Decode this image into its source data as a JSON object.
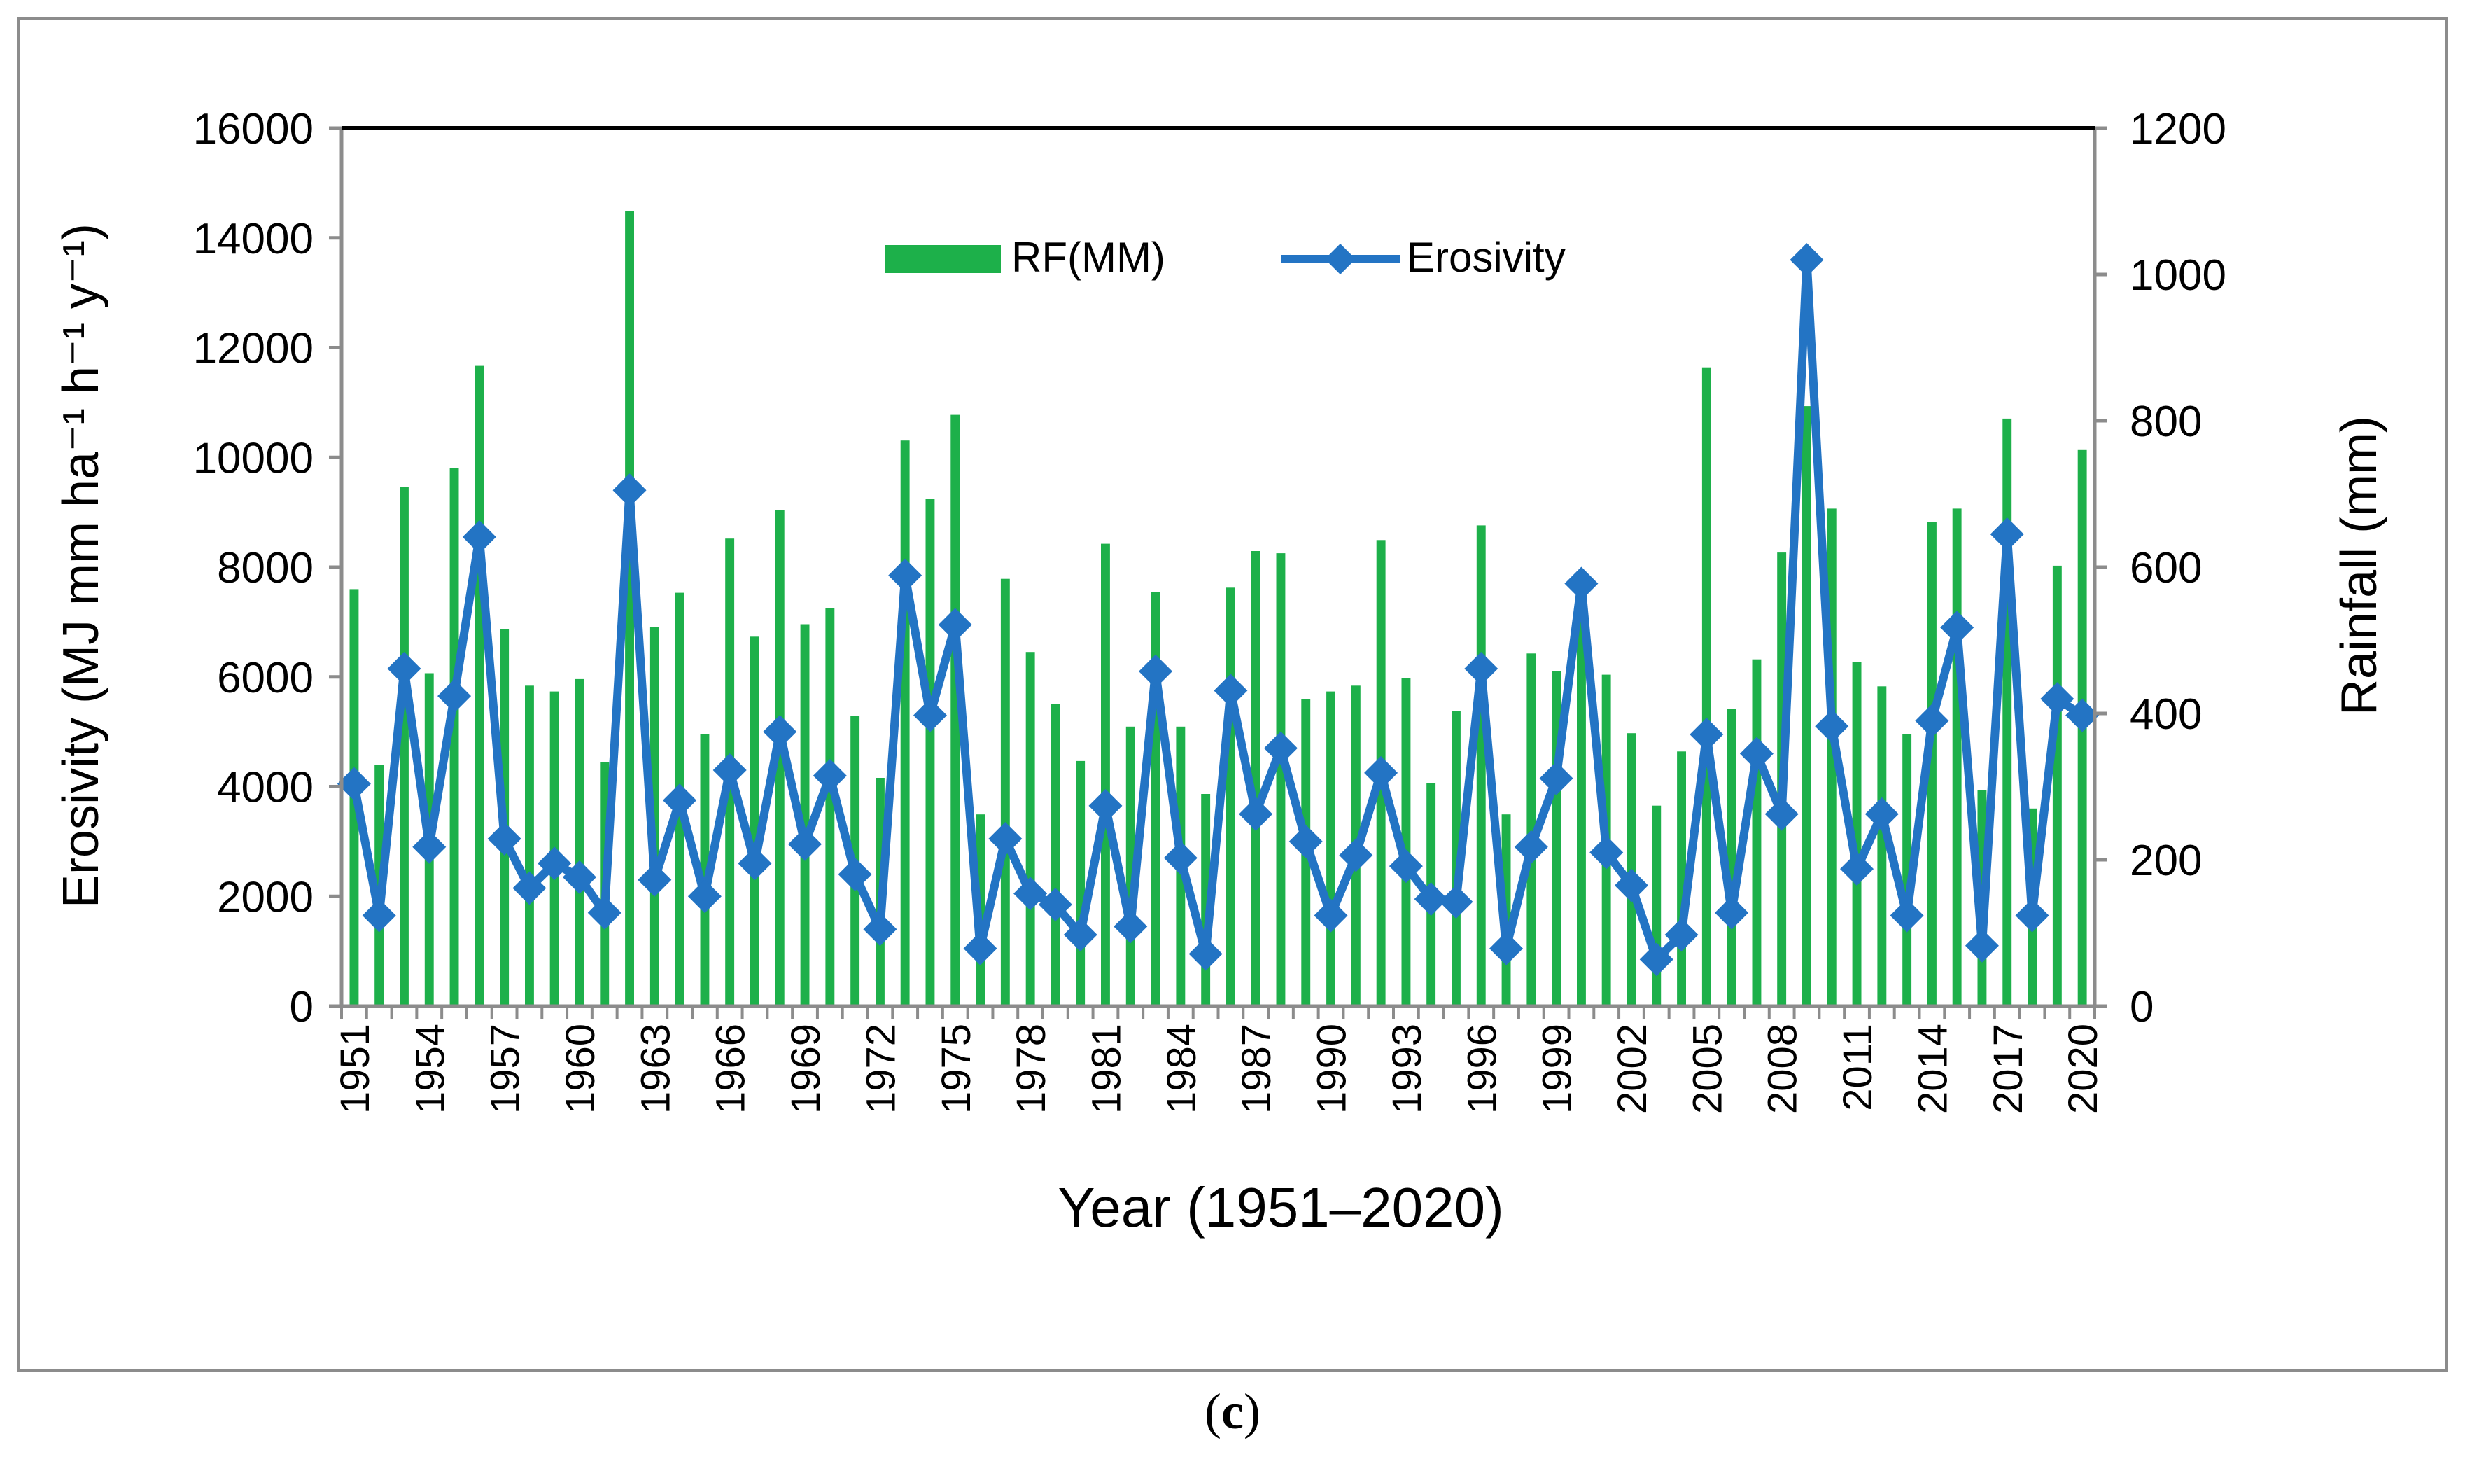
{
  "caption": {
    "open": "(",
    "letter": "c",
    "close": ")"
  },
  "colors": {
    "bar": "#1db04a",
    "line": "#2374c4",
    "axis": "#8c8c8c",
    "top_border": "#000000",
    "text": "#000000"
  },
  "chart_data": {
    "type": "bar",
    "title": "",
    "xlabel": "Year (1951–2020)",
    "ylabel": "Erosivity (MJ mm ha⁻¹ h⁻¹ y⁻¹)",
    "y2label": "Rainfall (mm)",
    "ylim": [
      0,
      16000
    ],
    "yticks": [
      0,
      2000,
      4000,
      6000,
      8000,
      10000,
      12000,
      14000,
      16000
    ],
    "y2lim": [
      0,
      1200
    ],
    "y2ticks": [
      0,
      200,
      400,
      600,
      800,
      1000,
      1200
    ],
    "grid": false,
    "legend_position": "top-center",
    "x_tick_labels": [
      "1951",
      "1954",
      "1957",
      "1960",
      "1963",
      "1966",
      "1969",
      "1972",
      "1975",
      "1978",
      "1981",
      "1984",
      "1987",
      "1990",
      "1993",
      "1996",
      "1999",
      "2002",
      "2005",
      "2008",
      "2011",
      "2014",
      "2017",
      "2020"
    ],
    "categories": [
      1951,
      1952,
      1953,
      1954,
      1955,
      1956,
      1957,
      1958,
      1959,
      1960,
      1961,
      1962,
      1963,
      1964,
      1965,
      1966,
      1967,
      1968,
      1969,
      1970,
      1971,
      1972,
      1973,
      1974,
      1975,
      1976,
      1977,
      1978,
      1979,
      1980,
      1981,
      1982,
      1983,
      1984,
      1985,
      1986,
      1987,
      1988,
      1989,
      1990,
      1991,
      1992,
      1993,
      1994,
      1995,
      1996,
      1997,
      1998,
      1999,
      2000,
      2001,
      2002,
      2003,
      2004,
      2005,
      2006,
      2007,
      2008,
      2009,
      2010,
      2011,
      2012,
      2013,
      2014,
      2015,
      2016,
      2017,
      2018,
      2019,
      2020
    ],
    "series": [
      {
        "name": "RF(MM)",
        "kind": "bar",
        "axis": "right",
        "values": [
          570,
          330,
          710,
          455,
          735,
          875,
          515,
          438,
          430,
          447,
          333,
          1087,
          518,
          565,
          372,
          639,
          505,
          678,
          522,
          544,
          397,
          312,
          773,
          693,
          808,
          262,
          584,
          484,
          413,
          335,
          632,
          382,
          566,
          382,
          290,
          572,
          622,
          619,
          420,
          430,
          438,
          637,
          448,
          305,
          403,
          657,
          262,
          482,
          458,
          578,
          453,
          373,
          274,
          348,
          873,
          406,
          474,
          620,
          820,
          680,
          470,
          437,
          372,
          662,
          680,
          295,
          803,
          270,
          602,
          760
        ]
      },
      {
        "name": "Erosivity",
        "kind": "line",
        "axis": "left",
        "values": [
          4050,
          1650,
          6150,
          2900,
          5650,
          8550,
          3050,
          2150,
          2600,
          2350,
          1700,
          9400,
          2300,
          3750,
          2000,
          4300,
          2600,
          5000,
          2950,
          4200,
          2400,
          1400,
          7850,
          5300,
          6950,
          1050,
          3050,
          2050,
          1850,
          1300,
          3650,
          1450,
          6100,
          2700,
          950,
          5750,
          3500,
          4700,
          3000,
          1650,
          2750,
          4250,
          2550,
          1950,
          1900,
          6150,
          1050,
          2900,
          4150,
          7700,
          2800,
          2200,
          850,
          1300,
          4950,
          1700,
          4600,
          3500,
          13600,
          5100,
          2500,
          3500,
          1650,
          5200,
          6900,
          1100,
          8600,
          1650,
          5600,
          5300
        ]
      }
    ]
  }
}
